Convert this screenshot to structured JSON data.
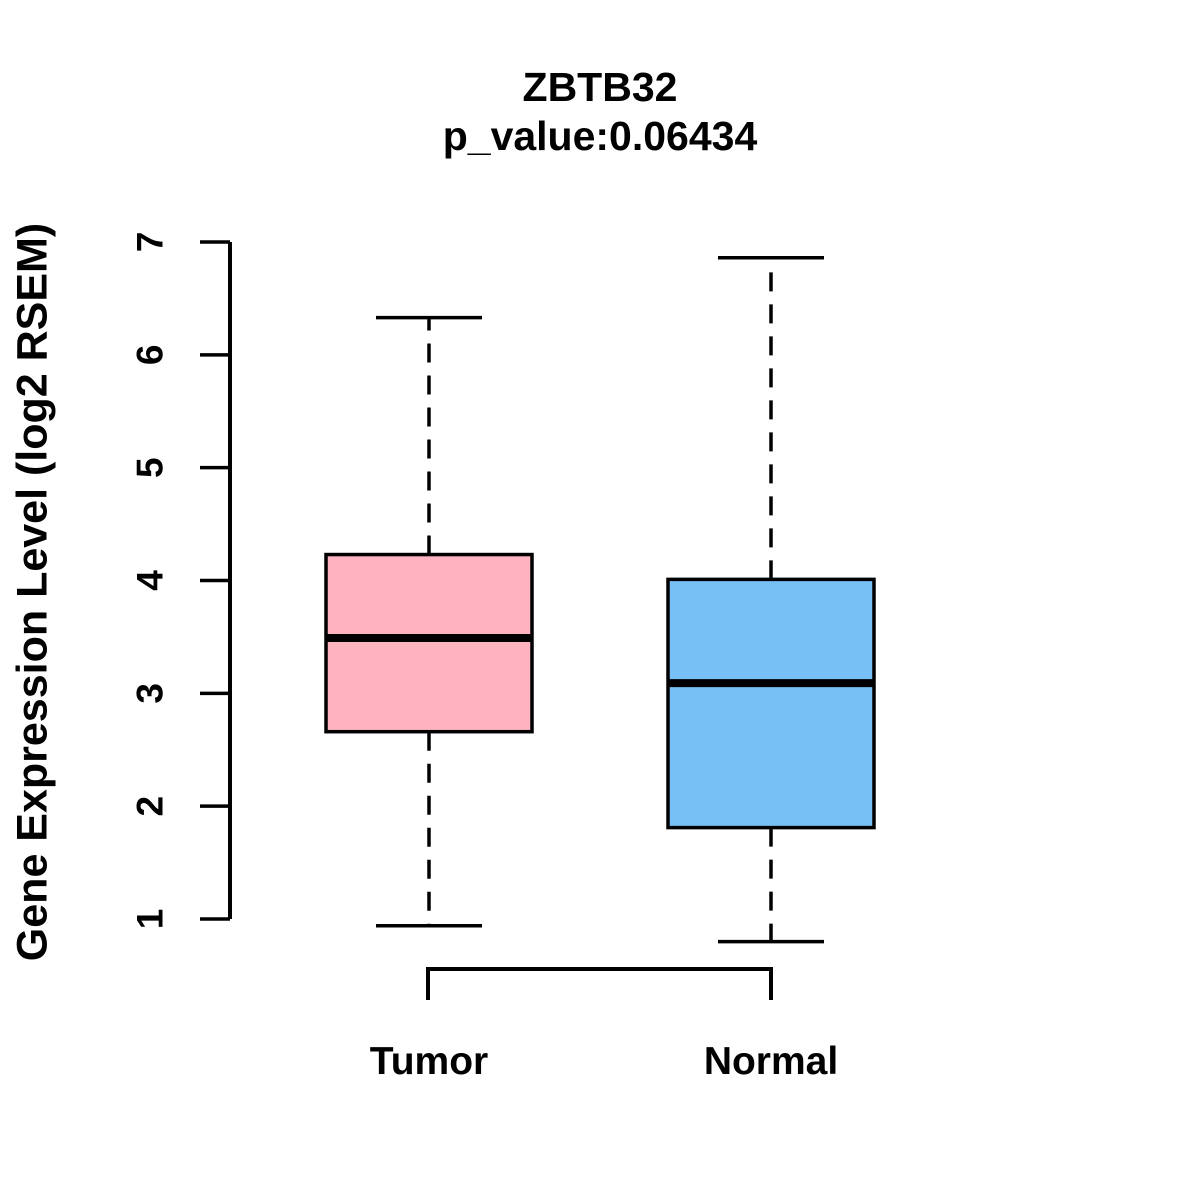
{
  "chart_data": {
    "type": "boxplot",
    "title": "ZBTB32",
    "subtitle": "p_value:0.06434",
    "p_value": "0.06434",
    "ylabel": "Gene Expression Level (log2 RSEM)",
    "ylim": [
      1,
      7
    ],
    "yticks": [
      1,
      2,
      3,
      4,
      5,
      6,
      7
    ],
    "grid": false,
    "legend": null,
    "whisker_style": "dashed",
    "groups": [
      {
        "label": "Tumor",
        "color": "#FFB3C1",
        "stats": {
          "lower_whisker": 0.94,
          "q1": 2.66,
          "median": 3.49,
          "q3": 4.23,
          "upper_whisker": 6.33
        }
      },
      {
        "label": "Normal",
        "color": "#76C0F6",
        "stats": {
          "lower_whisker": 0.8,
          "q1": 1.81,
          "median": 3.09,
          "q3": 4.01,
          "upper_whisker": 6.86
        }
      }
    ]
  }
}
